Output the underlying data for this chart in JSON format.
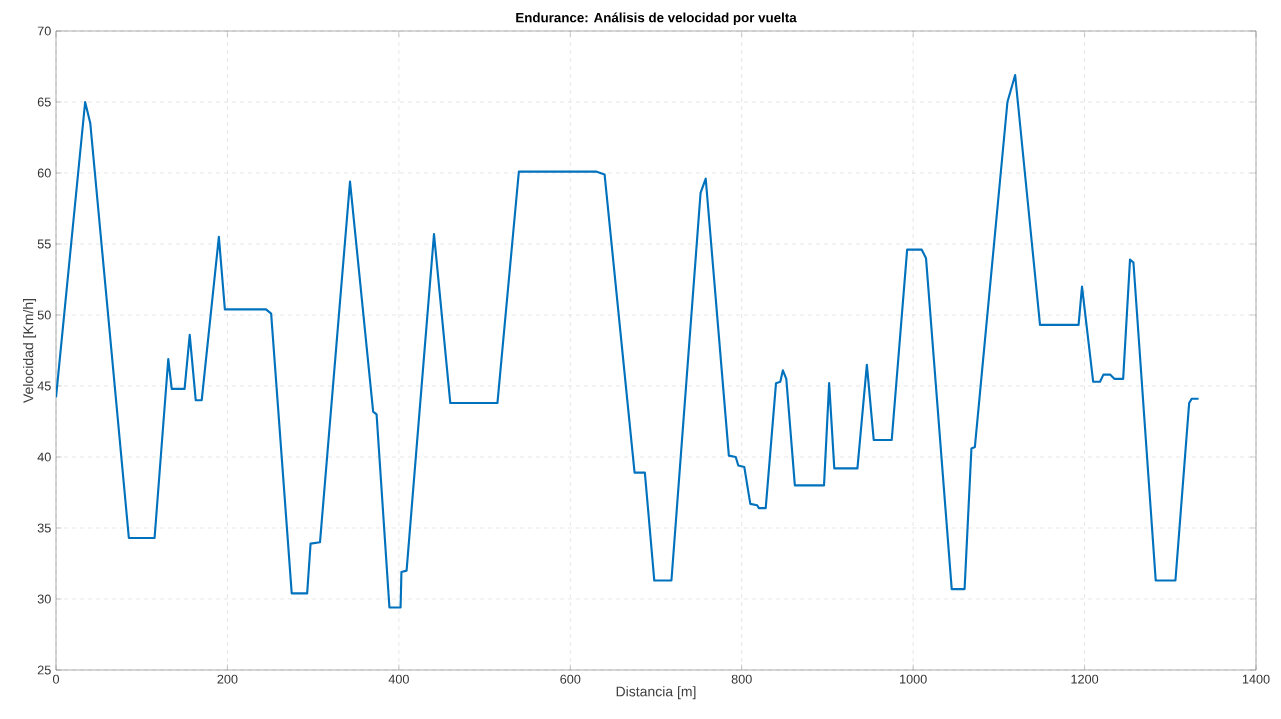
{
  "chart_data": {
    "type": "line",
    "title": "Endurance: Análisis de velocidad por vuelta",
    "xlabel": "Distancia [m]",
    "ylabel": "Velocidad [Km/h]",
    "xlim": [
      0,
      1400
    ],
    "ylim": [
      25,
      70
    ],
    "xticks": [
      0,
      200,
      400,
      600,
      800,
      1000,
      1200,
      1400
    ],
    "yticks": [
      25,
      30,
      35,
      40,
      45,
      50,
      55,
      60,
      65,
      70
    ],
    "grid": true,
    "marker": "none",
    "line_style": "solid",
    "series": [
      {
        "color": "#0072bd",
        "x": [
          0,
          34,
          40,
          85,
          115,
          131,
          135,
          150,
          156,
          163,
          170,
          190,
          197,
          245,
          251,
          275,
          293,
          297,
          308,
          343,
          370,
          374,
          389,
          402,
          403,
          409,
          441,
          460,
          515,
          540,
          630,
          640,
          675,
          687,
          698,
          718,
          752,
          758,
          785,
          793,
          796,
          803,
          810,
          818,
          820,
          828,
          840,
          845,
          848,
          852,
          862,
          896,
          902,
          908,
          935,
          946,
          954,
          975,
          993,
          1010,
          1015,
          1045,
          1060,
          1068,
          1072,
          1110,
          1119,
          1148,
          1193,
          1197,
          1210,
          1218,
          1222,
          1230,
          1235,
          1245,
          1253,
          1257,
          1283,
          1306,
          1322,
          1325,
          1333
        ],
        "values": [
          44.2,
          65,
          63.5,
          34.3,
          34.3,
          46.9,
          44.8,
          44.8,
          48.6,
          44,
          44,
          55.5,
          50.4,
          50.4,
          50.1,
          30.4,
          30.4,
          33.9,
          34,
          59.4,
          43.2,
          43,
          29.4,
          29.4,
          31.9,
          32,
          55.7,
          43.8,
          43.8,
          60.1,
          60.1,
          59.9,
          38.9,
          38.9,
          31.3,
          31.3,
          58.6,
          59.6,
          40.1,
          40,
          39.4,
          39.3,
          36.7,
          36.6,
          36.4,
          36.4,
          45.2,
          45.3,
          46.1,
          45.5,
          38,
          38,
          45.2,
          39.2,
          39.2,
          46.5,
          41.2,
          41.2,
          54.6,
          54.6,
          54,
          30.7,
          30.7,
          40.6,
          40.7,
          65,
          66.9,
          49.3,
          49.3,
          52,
          45.3,
          45.3,
          45.8,
          45.8,
          45.5,
          45.5,
          53.9,
          53.7,
          31.3,
          31.3,
          43.8,
          44.1,
          44.1
        ]
      }
    ]
  }
}
